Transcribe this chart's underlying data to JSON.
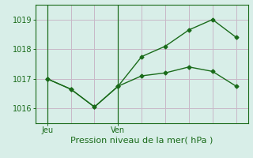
{
  "xlabel": "Pression niveau de la mer( hPa )",
  "background_color": "#d8eee8",
  "grid_color": "#c8b8c8",
  "line_color": "#1a6b1a",
  "ylim": [
    1015.5,
    1019.5
  ],
  "yticks": [
    1016,
    1017,
    1018,
    1019
  ],
  "xtick_positions": [
    0,
    3
  ],
  "xtick_labels": [
    "Jeu",
    "Ven"
  ],
  "vline_positions": [
    0,
    3
  ],
  "line1_x": [
    0,
    1,
    2,
    3,
    4,
    5,
    6,
    7,
    8
  ],
  "line1_y": [
    1017.0,
    1016.65,
    1016.05,
    1016.75,
    1017.75,
    1018.1,
    1018.65,
    1019.0,
    1018.4
  ],
  "line2_x": [
    0,
    1,
    2,
    3,
    4,
    5,
    6,
    7,
    8
  ],
  "line2_y": [
    1017.0,
    1016.65,
    1016.05,
    1016.75,
    1017.1,
    1017.2,
    1017.4,
    1017.25,
    1016.75
  ],
  "marker": "D",
  "markersize": 2.5,
  "linewidth": 1.0,
  "tick_labelsize": 7,
  "xlabel_fontsize": 8,
  "xlim": [
    -0.5,
    8.5
  ],
  "num_xgrid": 9,
  "num_ygrid": 5
}
